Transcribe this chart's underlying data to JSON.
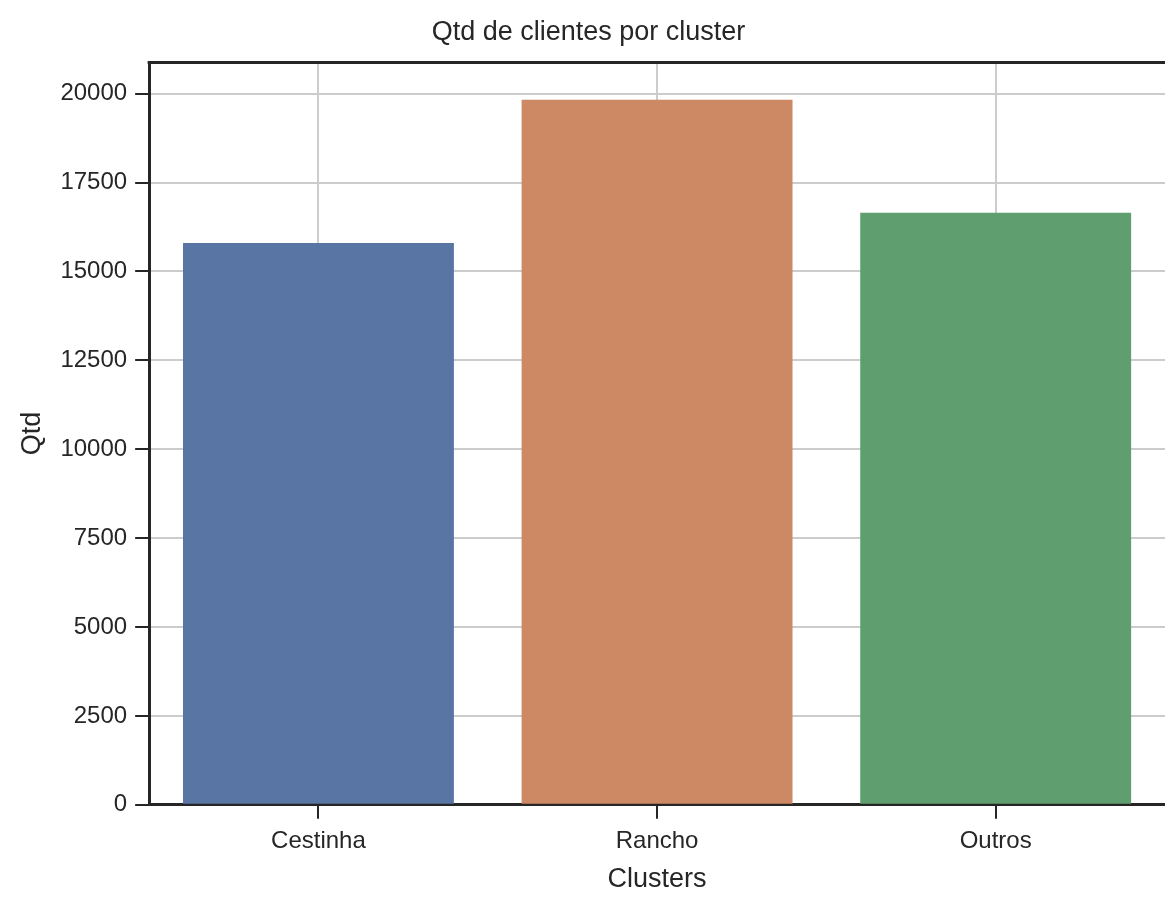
{
  "chart_data": {
    "type": "bar",
    "title": "Qtd de clientes por cluster",
    "xlabel": "Clusters",
    "ylabel": "Qtd",
    "categories": [
      "Cestinha",
      "Rancho",
      "Outros"
    ],
    "values": [
      15800,
      19830,
      16650
    ],
    "colors": [
      "#5975a4",
      "#cc8963",
      "#5f9e6e"
    ],
    "ylim": [
      0,
      20880
    ],
    "yticks": [
      0,
      2500,
      5000,
      7500,
      10000,
      12500,
      15000,
      17500,
      20000
    ],
    "grid": true
  }
}
